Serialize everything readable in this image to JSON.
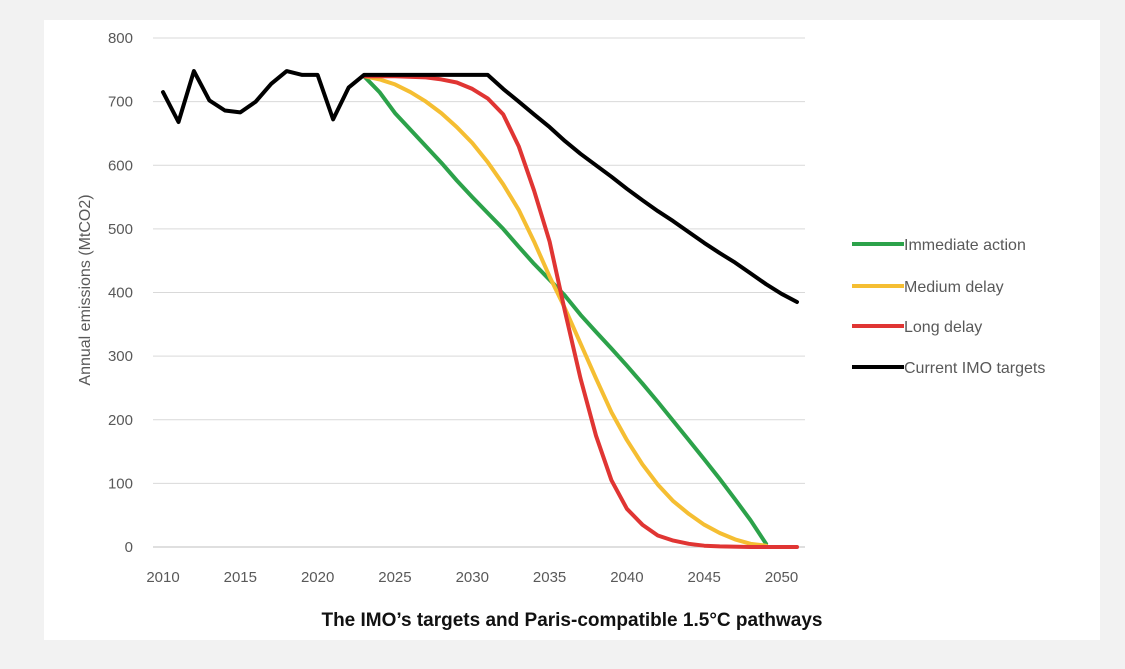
{
  "caption": "The IMO’s targets and Paris-compatible 1.5°C pathways",
  "chart_data": {
    "type": "line",
    "title": "",
    "xlabel": "",
    "ylabel": "Annual emissions (MtCO2)",
    "xlim": [
      2010,
      2051
    ],
    "ylim": [
      0,
      800
    ],
    "x_ticks": [
      2010,
      2015,
      2020,
      2025,
      2030,
      2035,
      2040,
      2045,
      2050
    ],
    "y_ticks": [
      0,
      100,
      200,
      300,
      400,
      500,
      600,
      700,
      800
    ],
    "grid": "horizontal",
    "legend_position": "right",
    "series": [
      {
        "name": "Immediate action",
        "color": "#2ca24a",
        "points": [
          [
            2023,
            740
          ],
          [
            2024,
            715
          ],
          [
            2025,
            682
          ],
          [
            2026,
            656
          ],
          [
            2027,
            630
          ],
          [
            2028,
            604
          ],
          [
            2029,
            576
          ],
          [
            2030,
            550
          ],
          [
            2031,
            525
          ],
          [
            2032,
            500
          ],
          [
            2033,
            472
          ],
          [
            2034,
            445
          ],
          [
            2035,
            420
          ],
          [
            2036,
            395
          ],
          [
            2037,
            365
          ],
          [
            2038,
            338
          ],
          [
            2039,
            312
          ],
          [
            2040,
            285
          ],
          [
            2041,
            257
          ],
          [
            2042,
            228
          ],
          [
            2043,
            198
          ],
          [
            2044,
            168
          ],
          [
            2045,
            138
          ],
          [
            2046,
            107
          ],
          [
            2047,
            75
          ],
          [
            2048,
            42
          ],
          [
            2049,
            5
          ]
        ]
      },
      {
        "name": "Medium delay",
        "color": "#f5be32",
        "points": [
          [
            2023,
            740
          ],
          [
            2024,
            735
          ],
          [
            2025,
            727
          ],
          [
            2026,
            715
          ],
          [
            2027,
            700
          ],
          [
            2028,
            682
          ],
          [
            2029,
            660
          ],
          [
            2030,
            635
          ],
          [
            2031,
            605
          ],
          [
            2032,
            570
          ],
          [
            2033,
            530
          ],
          [
            2034,
            480
          ],
          [
            2035,
            425
          ],
          [
            2036,
            375
          ],
          [
            2037,
            320
          ],
          [
            2038,
            265
          ],
          [
            2039,
            212
          ],
          [
            2040,
            168
          ],
          [
            2041,
            130
          ],
          [
            2042,
            98
          ],
          [
            2043,
            72
          ],
          [
            2044,
            52
          ],
          [
            2045,
            35
          ],
          [
            2046,
            22
          ],
          [
            2047,
            12
          ],
          [
            2048,
            5
          ],
          [
            2049,
            2
          ]
        ]
      },
      {
        "name": "Long delay",
        "color": "#e03533",
        "points": [
          [
            2023,
            740
          ],
          [
            2025,
            740
          ],
          [
            2027,
            738
          ],
          [
            2028,
            735
          ],
          [
            2029,
            730
          ],
          [
            2030,
            720
          ],
          [
            2031,
            705
          ],
          [
            2032,
            680
          ],
          [
            2033,
            630
          ],
          [
            2034,
            560
          ],
          [
            2035,
            480
          ],
          [
            2036,
            370
          ],
          [
            2037,
            265
          ],
          [
            2038,
            175
          ],
          [
            2039,
            105
          ],
          [
            2040,
            60
          ],
          [
            2041,
            35
          ],
          [
            2042,
            18
          ],
          [
            2043,
            10
          ],
          [
            2044,
            5
          ],
          [
            2045,
            2
          ],
          [
            2046,
            1
          ],
          [
            2048,
            0
          ],
          [
            2050,
            0
          ],
          [
            2051,
            0
          ]
        ]
      },
      {
        "name": "Current IMO targets",
        "color": "#000000",
        "points": [
          [
            2010,
            715
          ],
          [
            2011,
            668
          ],
          [
            2012,
            748
          ],
          [
            2013,
            702
          ],
          [
            2014,
            686
          ],
          [
            2015,
            683
          ],
          [
            2016,
            700
          ],
          [
            2017,
            728
          ],
          [
            2018,
            748
          ],
          [
            2019,
            742
          ],
          [
            2020,
            742
          ],
          [
            2021,
            672
          ],
          [
            2022,
            722
          ],
          [
            2023,
            742
          ],
          [
            2024,
            742
          ],
          [
            2025,
            742
          ],
          [
            2026,
            742
          ],
          [
            2027,
            742
          ],
          [
            2028,
            742
          ],
          [
            2029,
            742
          ],
          [
            2030,
            742
          ],
          [
            2031,
            742
          ],
          [
            2032,
            720
          ],
          [
            2033,
            700
          ],
          [
            2034,
            680
          ],
          [
            2035,
            660
          ],
          [
            2036,
            638
          ],
          [
            2037,
            618
          ],
          [
            2038,
            600
          ],
          [
            2039,
            582
          ],
          [
            2040,
            563
          ],
          [
            2041,
            545
          ],
          [
            2042,
            528
          ],
          [
            2043,
            512
          ],
          [
            2044,
            495
          ],
          [
            2045,
            478
          ],
          [
            2046,
            462
          ],
          [
            2047,
            447
          ],
          [
            2048,
            430
          ],
          [
            2049,
            413
          ],
          [
            2050,
            398
          ],
          [
            2051,
            385
          ]
        ]
      }
    ]
  }
}
